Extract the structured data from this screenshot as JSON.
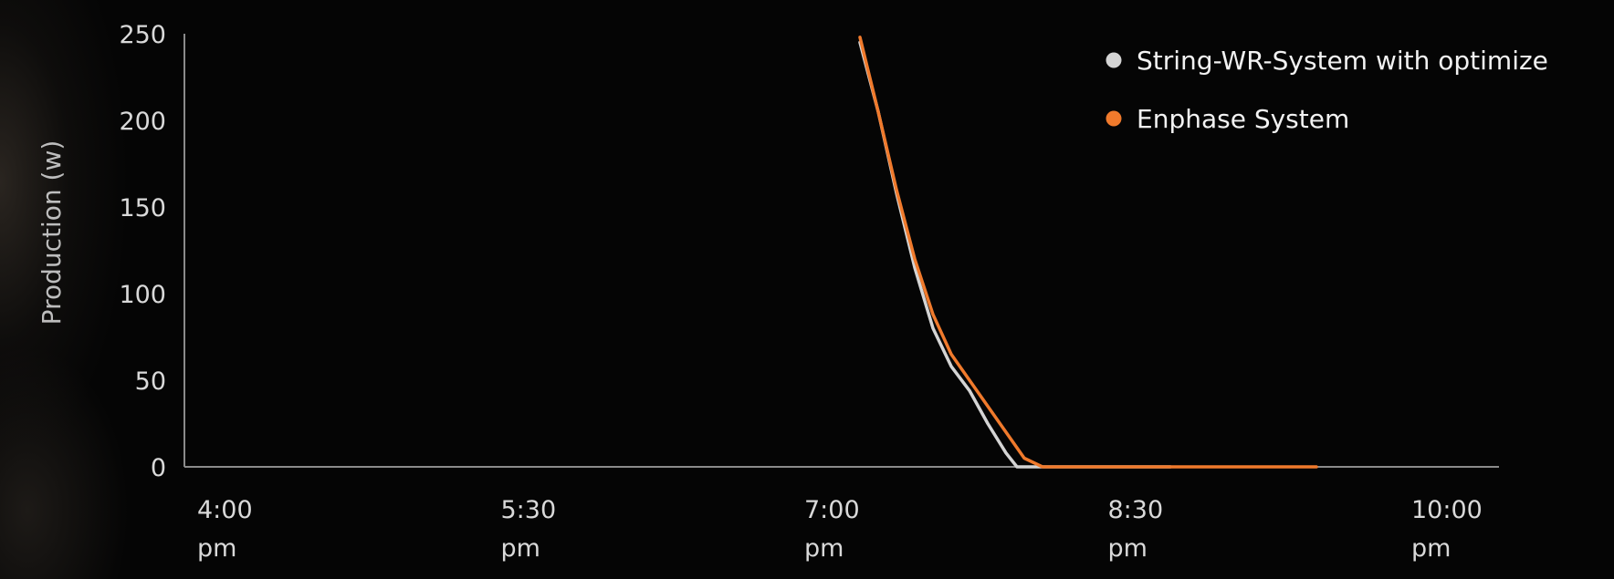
{
  "chart_data": {
    "type": "line",
    "ylabel": "Production (w)",
    "xlabel": "",
    "ylim": [
      0,
      250
    ],
    "yticks": [
      "250",
      "200",
      "150",
      "100",
      "50",
      "0"
    ],
    "xticks": [
      {
        "time": "4:00",
        "ampm": "pm"
      },
      {
        "time": "5:30",
        "ampm": "pm"
      },
      {
        "time": "7:00",
        "ampm": "pm"
      },
      {
        "time": "8:30",
        "ampm": "pm"
      },
      {
        "time": "10:00",
        "ampm": "pm"
      }
    ],
    "legend_position": "top-right",
    "grid": false,
    "series": [
      {
        "name": "String-WR-System with optimize",
        "color": "#d4d4d4",
        "x": [
          "19:05",
          "19:10",
          "19:15",
          "19:20",
          "19:25",
          "19:30",
          "19:35",
          "19:40",
          "19:45",
          "19:48",
          "19:50",
          "19:55",
          "20:00",
          "20:05",
          "20:10",
          "20:15",
          "20:20",
          "20:25",
          "20:30"
        ],
        "y": [
          245,
          205,
          158,
          115,
          80,
          58,
          44,
          25,
          8,
          0,
          0,
          0,
          0,
          0,
          0,
          0,
          0,
          0,
          0
        ]
      },
      {
        "name": "Enphase System",
        "color": "#f07a2c",
        "x": [
          "19:05",
          "19:10",
          "19:15",
          "19:20",
          "19:25",
          "19:30",
          "19:35",
          "19:40",
          "19:45",
          "19:50",
          "19:55",
          "20:00",
          "20:05",
          "20:10",
          "20:15",
          "20:20",
          "20:25",
          "20:30",
          "20:35",
          "20:40",
          "20:45",
          "20:50",
          "20:55",
          "21:00",
          "21:05",
          "21:10"
        ],
        "y": [
          248,
          205,
          160,
          120,
          88,
          65,
          50,
          35,
          20,
          5,
          0,
          0,
          0,
          0,
          0,
          0,
          0,
          0,
          0,
          0,
          0,
          0,
          0,
          0,
          0,
          0
        ]
      }
    ]
  }
}
